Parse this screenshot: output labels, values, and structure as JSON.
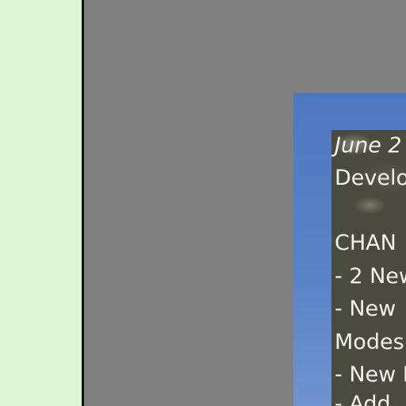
{
  "changelog": {
    "date": "June 2",
    "subtitle": "Develo",
    "heading": "CHAN",
    "lines": [
      "- 2 New",
      "- New",
      "Modes",
      "- New I",
      "- Add"
    ]
  },
  "colors": {
    "left_panel": "#ddf5d2",
    "gray_background": "#808080",
    "blue_panel": "#5a84c8",
    "card": "#4a4a40"
  }
}
